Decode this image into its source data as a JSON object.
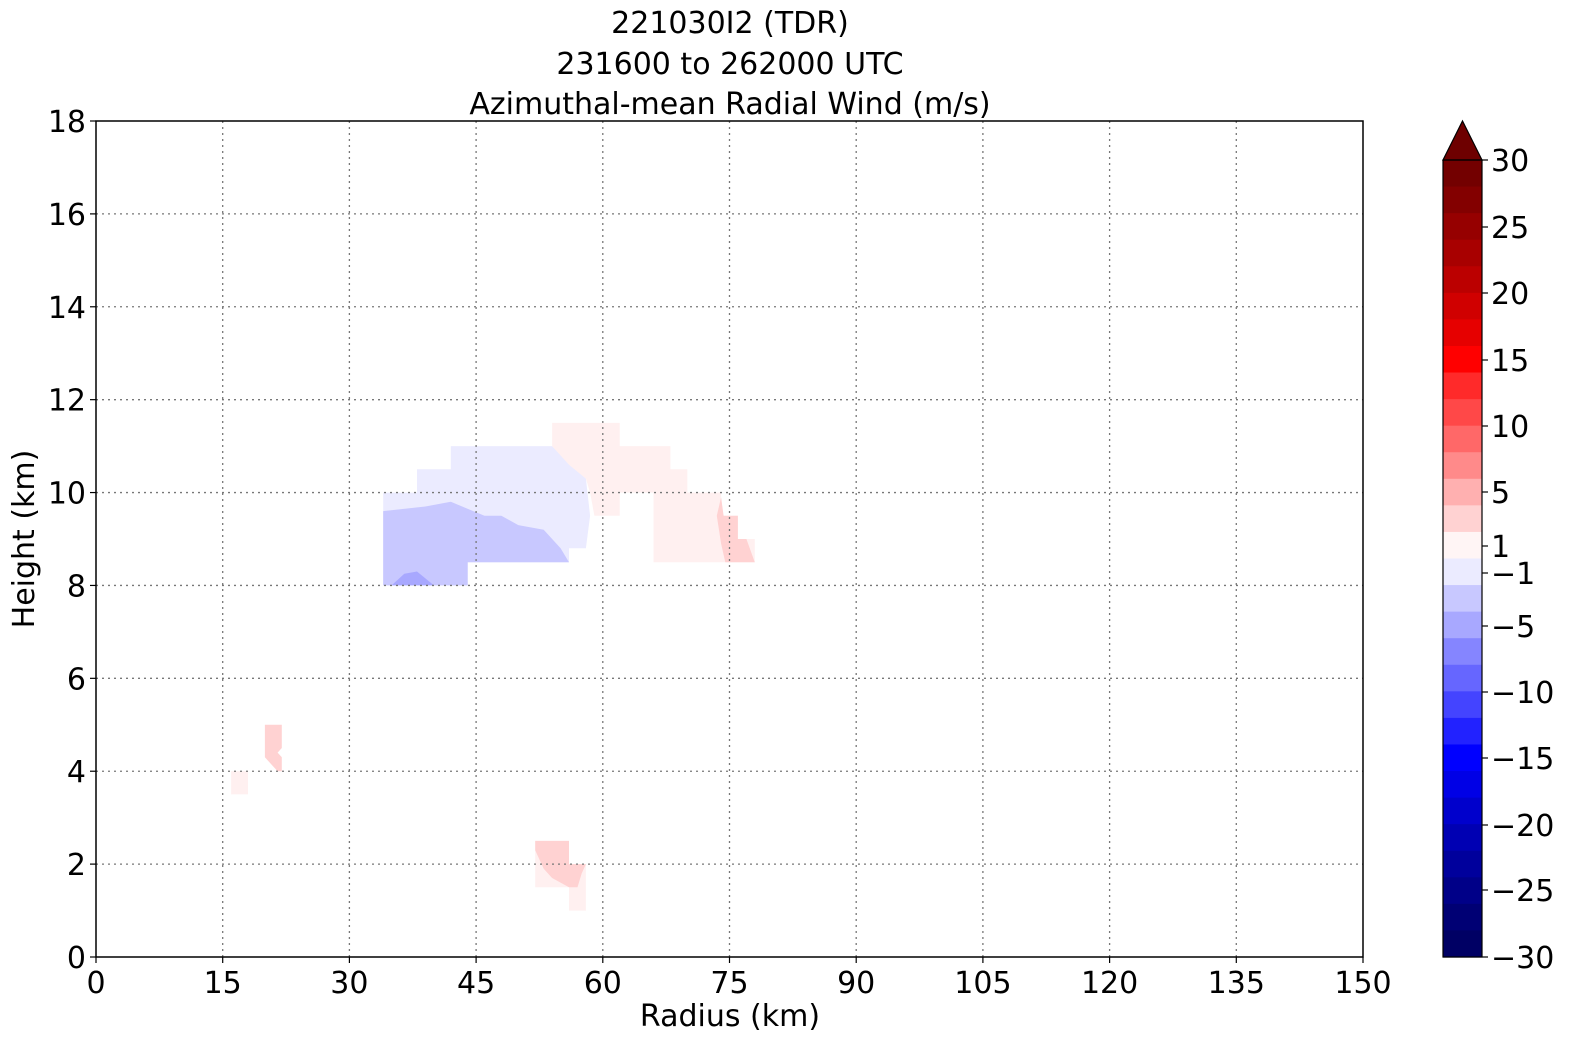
{
  "chart_data": {
    "type": "heatmap",
    "title_lines": [
      "221030I2 (TDR)",
      "231600 to 262000 UTC",
      "Azimuthal-mean Radial Wind (m/s)"
    ],
    "xlabel": "Radius (km)",
    "ylabel": "Height (km)",
    "xlim": [
      0,
      150
    ],
    "ylim": [
      0,
      18
    ],
    "x_ticks": [
      "0",
      "15",
      "30",
      "45",
      "60",
      "75",
      "90",
      "105",
      "120",
      "135",
      "150"
    ],
    "y_ticks": [
      "0",
      "2",
      "4",
      "6",
      "8",
      "10",
      "12",
      "14",
      "16",
      "18"
    ],
    "grid": "dotted",
    "colorbar": {
      "label_values": [
        "30",
        "25",
        "20",
        "15",
        "10",
        "5",
        "1",
        "−1",
        "−5",
        "−10",
        "−15",
        "−20",
        "−25",
        "−30"
      ],
      "levels_positive": [
        1,
        2,
        3,
        4,
        5,
        6,
        7,
        8,
        9,
        10,
        11,
        12,
        13,
        14,
        15,
        16,
        17,
        18,
        19,
        20,
        21,
        22,
        23,
        24,
        25,
        26,
        27,
        28,
        29,
        30
      ],
      "extend": "max",
      "colors_pos": [
        "#fff5f5",
        "#ffd2d2",
        "#ffb0b0",
        "#ff8a8a",
        "#ff6868",
        "#ff4848",
        "#ff2a2a",
        "#ff0000",
        "#e60000",
        "#d00000",
        "#bb0000",
        "#a80000",
        "#960000",
        "#830000",
        "#730000"
      ],
      "colors_neg": [
        "#ebebff",
        "#c8c8ff",
        "#a8a8ff",
        "#8585ff",
        "#6666ff",
        "#4444ff",
        "#2222ff",
        "#0000ff",
        "#0000e6",
        "#0000cc",
        "#0000b3",
        "#00009c",
        "#000088",
        "#000074",
        "#000064"
      ],
      "extend_color": "#6e0000"
    },
    "regions": [
      {
        "sign": "negative",
        "level": 1,
        "color": "#ebebff",
        "points": [
          [
            34,
            10.0
          ],
          [
            38,
            10.0
          ],
          [
            38,
            10.5
          ],
          [
            42,
            10.5
          ],
          [
            42,
            11.0
          ],
          [
            54,
            11.0
          ],
          [
            58,
            10.3
          ],
          [
            58.5,
            9.5
          ],
          [
            58,
            8.8
          ],
          [
            56,
            8.8
          ],
          [
            56,
            8.5
          ],
          [
            44,
            8.5
          ],
          [
            44,
            8.0
          ],
          [
            34,
            8.0
          ]
        ]
      },
      {
        "sign": "negative",
        "level": 2,
        "color": "#c8c8ff",
        "points": [
          [
            34,
            9.6
          ],
          [
            39,
            9.7
          ],
          [
            42,
            9.8
          ],
          [
            46,
            9.5
          ],
          [
            48,
            9.5
          ],
          [
            50,
            9.3
          ],
          [
            53,
            9.2
          ],
          [
            55,
            8.8
          ],
          [
            56,
            8.5
          ],
          [
            44,
            8.5
          ],
          [
            44,
            8.0
          ],
          [
            34,
            8.0
          ]
        ]
      },
      {
        "sign": "negative",
        "level": 3,
        "color": "#a8a8ff",
        "points": [
          [
            35,
            8.0
          ],
          [
            36.5,
            8.25
          ],
          [
            38,
            8.3
          ],
          [
            40,
            8.0
          ]
        ]
      },
      {
        "sign": "positive",
        "level": 1,
        "color": "#fff0f0",
        "points": [
          [
            54,
            11.5
          ],
          [
            62,
            11.5
          ],
          [
            62,
            11.0
          ],
          [
            68,
            11.0
          ],
          [
            68,
            10.5
          ],
          [
            70,
            10.5
          ],
          [
            70,
            10.0
          ],
          [
            74,
            10.0
          ],
          [
            74,
            9.5
          ],
          [
            76,
            9.5
          ],
          [
            76,
            9.0
          ],
          [
            78,
            9.0
          ],
          [
            78,
            8.5
          ],
          [
            66,
            8.5
          ],
          [
            66,
            10.0
          ],
          [
            62,
            10.0
          ],
          [
            62,
            9.5
          ],
          [
            59,
            9.5
          ],
          [
            58.5,
            10.0
          ],
          [
            58,
            10.3
          ],
          [
            56,
            10.6
          ],
          [
            54,
            11.0
          ]
        ]
      },
      {
        "sign": "positive",
        "level": 2,
        "color": "#ffd2d2",
        "points": [
          [
            74,
            9.9
          ],
          [
            74.3,
            9.5
          ],
          [
            76,
            9.5
          ],
          [
            76,
            9.0
          ],
          [
            77,
            9.0
          ],
          [
            78,
            8.5
          ],
          [
            74.5,
            8.5
          ],
          [
            74,
            8.9
          ],
          [
            73.5,
            9.5
          ]
        ]
      },
      {
        "sign": "positive",
        "level": 2,
        "color": "#ffd2d2",
        "points": [
          [
            20,
            5.0
          ],
          [
            22,
            5.0
          ],
          [
            22,
            4.5
          ],
          [
            21.5,
            4.4
          ],
          [
            22,
            4.3
          ],
          [
            22,
            4.0
          ],
          [
            21.5,
            4.0
          ],
          [
            20,
            4.3
          ]
        ]
      },
      {
        "sign": "positive",
        "level": 1,
        "color": "#fff0f0",
        "points": [
          [
            16,
            3.5
          ],
          [
            18,
            3.5
          ],
          [
            18,
            4.0
          ],
          [
            16,
            4.0
          ]
        ]
      },
      {
        "sign": "positive",
        "level": 1,
        "color": "#fff0f0",
        "points": [
          [
            52,
            1.5
          ],
          [
            54,
            1.5
          ],
          [
            56,
            1.5
          ],
          [
            56,
            1.0
          ],
          [
            58,
            1.0
          ],
          [
            58,
            2.0
          ],
          [
            56,
            2.0
          ],
          [
            56,
            2.5
          ],
          [
            52,
            2.5
          ]
        ]
      },
      {
        "sign": "positive",
        "level": 2,
        "color": "#ffd2d2",
        "points": [
          [
            52,
            2.5
          ],
          [
            56,
            2.5
          ],
          [
            56,
            2.0
          ],
          [
            58,
            2.0
          ],
          [
            57.5,
            1.8
          ],
          [
            57,
            1.5
          ],
          [
            56,
            1.5
          ],
          [
            54,
            1.7
          ],
          [
            53,
            1.9
          ],
          [
            52,
            2.3
          ]
        ]
      }
    ]
  }
}
